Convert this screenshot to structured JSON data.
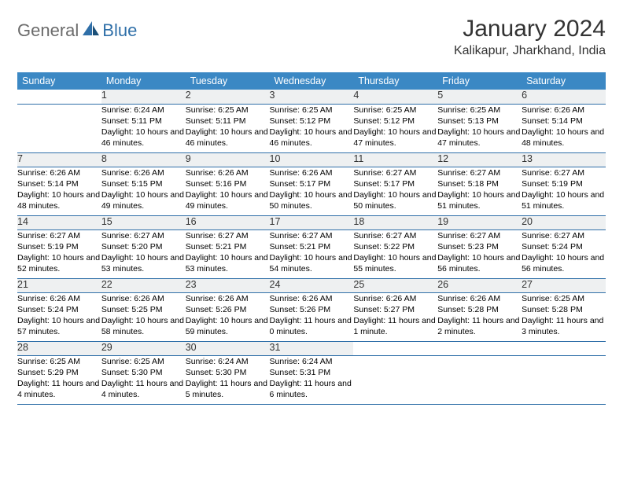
{
  "logo": {
    "part1": "General",
    "part2": "Blue"
  },
  "title": "January 2024",
  "location": "Kalikapur, Jharkhand, India",
  "colors": {
    "header_bg": "#3b88c4",
    "daynum_bg": "#eef0f1",
    "row_border": "#2f6fa8",
    "logo_blue": "#2f6fa8",
    "logo_gray": "#6b6b6b"
  },
  "weekday_headers": [
    "Sunday",
    "Monday",
    "Tuesday",
    "Wednesday",
    "Thursday",
    "Friday",
    "Saturday"
  ],
  "weeks": [
    {
      "nums": [
        "",
        "1",
        "2",
        "3",
        "4",
        "5",
        "6"
      ],
      "cells": [
        null,
        {
          "sunrise": "Sunrise: 6:24 AM",
          "sunset": "Sunset: 5:11 PM",
          "daylight": "Daylight: 10 hours and 46 minutes."
        },
        {
          "sunrise": "Sunrise: 6:25 AM",
          "sunset": "Sunset: 5:11 PM",
          "daylight": "Daylight: 10 hours and 46 minutes."
        },
        {
          "sunrise": "Sunrise: 6:25 AM",
          "sunset": "Sunset: 5:12 PM",
          "daylight": "Daylight: 10 hours and 46 minutes."
        },
        {
          "sunrise": "Sunrise: 6:25 AM",
          "sunset": "Sunset: 5:12 PM",
          "daylight": "Daylight: 10 hours and 47 minutes."
        },
        {
          "sunrise": "Sunrise: 6:25 AM",
          "sunset": "Sunset: 5:13 PM",
          "daylight": "Daylight: 10 hours and 47 minutes."
        },
        {
          "sunrise": "Sunrise: 6:26 AM",
          "sunset": "Sunset: 5:14 PM",
          "daylight": "Daylight: 10 hours and 48 minutes."
        }
      ]
    },
    {
      "nums": [
        "7",
        "8",
        "9",
        "10",
        "11",
        "12",
        "13"
      ],
      "cells": [
        {
          "sunrise": "Sunrise: 6:26 AM",
          "sunset": "Sunset: 5:14 PM",
          "daylight": "Daylight: 10 hours and 48 minutes."
        },
        {
          "sunrise": "Sunrise: 6:26 AM",
          "sunset": "Sunset: 5:15 PM",
          "daylight": "Daylight: 10 hours and 49 minutes."
        },
        {
          "sunrise": "Sunrise: 6:26 AM",
          "sunset": "Sunset: 5:16 PM",
          "daylight": "Daylight: 10 hours and 49 minutes."
        },
        {
          "sunrise": "Sunrise: 6:26 AM",
          "sunset": "Sunset: 5:17 PM",
          "daylight": "Daylight: 10 hours and 50 minutes."
        },
        {
          "sunrise": "Sunrise: 6:27 AM",
          "sunset": "Sunset: 5:17 PM",
          "daylight": "Daylight: 10 hours and 50 minutes."
        },
        {
          "sunrise": "Sunrise: 6:27 AM",
          "sunset": "Sunset: 5:18 PM",
          "daylight": "Daylight: 10 hours and 51 minutes."
        },
        {
          "sunrise": "Sunrise: 6:27 AM",
          "sunset": "Sunset: 5:19 PM",
          "daylight": "Daylight: 10 hours and 51 minutes."
        }
      ]
    },
    {
      "nums": [
        "14",
        "15",
        "16",
        "17",
        "18",
        "19",
        "20"
      ],
      "cells": [
        {
          "sunrise": "Sunrise: 6:27 AM",
          "sunset": "Sunset: 5:19 PM",
          "daylight": "Daylight: 10 hours and 52 minutes."
        },
        {
          "sunrise": "Sunrise: 6:27 AM",
          "sunset": "Sunset: 5:20 PM",
          "daylight": "Daylight: 10 hours and 53 minutes."
        },
        {
          "sunrise": "Sunrise: 6:27 AM",
          "sunset": "Sunset: 5:21 PM",
          "daylight": "Daylight: 10 hours and 53 minutes."
        },
        {
          "sunrise": "Sunrise: 6:27 AM",
          "sunset": "Sunset: 5:21 PM",
          "daylight": "Daylight: 10 hours and 54 minutes."
        },
        {
          "sunrise": "Sunrise: 6:27 AM",
          "sunset": "Sunset: 5:22 PM",
          "daylight": "Daylight: 10 hours and 55 minutes."
        },
        {
          "sunrise": "Sunrise: 6:27 AM",
          "sunset": "Sunset: 5:23 PM",
          "daylight": "Daylight: 10 hours and 56 minutes."
        },
        {
          "sunrise": "Sunrise: 6:27 AM",
          "sunset": "Sunset: 5:24 PM",
          "daylight": "Daylight: 10 hours and 56 minutes."
        }
      ]
    },
    {
      "nums": [
        "21",
        "22",
        "23",
        "24",
        "25",
        "26",
        "27"
      ],
      "cells": [
        {
          "sunrise": "Sunrise: 6:26 AM",
          "sunset": "Sunset: 5:24 PM",
          "daylight": "Daylight: 10 hours and 57 minutes."
        },
        {
          "sunrise": "Sunrise: 6:26 AM",
          "sunset": "Sunset: 5:25 PM",
          "daylight": "Daylight: 10 hours and 58 minutes."
        },
        {
          "sunrise": "Sunrise: 6:26 AM",
          "sunset": "Sunset: 5:26 PM",
          "daylight": "Daylight: 10 hours and 59 minutes."
        },
        {
          "sunrise": "Sunrise: 6:26 AM",
          "sunset": "Sunset: 5:26 PM",
          "daylight": "Daylight: 11 hours and 0 minutes."
        },
        {
          "sunrise": "Sunrise: 6:26 AM",
          "sunset": "Sunset: 5:27 PM",
          "daylight": "Daylight: 11 hours and 1 minute."
        },
        {
          "sunrise": "Sunrise: 6:26 AM",
          "sunset": "Sunset: 5:28 PM",
          "daylight": "Daylight: 11 hours and 2 minutes."
        },
        {
          "sunrise": "Sunrise: 6:25 AM",
          "sunset": "Sunset: 5:28 PM",
          "daylight": "Daylight: 11 hours and 3 minutes."
        }
      ]
    },
    {
      "nums": [
        "28",
        "29",
        "30",
        "31",
        "",
        "",
        ""
      ],
      "cells": [
        {
          "sunrise": "Sunrise: 6:25 AM",
          "sunset": "Sunset: 5:29 PM",
          "daylight": "Daylight: 11 hours and 4 minutes."
        },
        {
          "sunrise": "Sunrise: 6:25 AM",
          "sunset": "Sunset: 5:30 PM",
          "daylight": "Daylight: 11 hours and 4 minutes."
        },
        {
          "sunrise": "Sunrise: 6:24 AM",
          "sunset": "Sunset: 5:30 PM",
          "daylight": "Daylight: 11 hours and 5 minutes."
        },
        {
          "sunrise": "Sunrise: 6:24 AM",
          "sunset": "Sunset: 5:31 PM",
          "daylight": "Daylight: 11 hours and 6 minutes."
        },
        null,
        null,
        null
      ]
    }
  ]
}
